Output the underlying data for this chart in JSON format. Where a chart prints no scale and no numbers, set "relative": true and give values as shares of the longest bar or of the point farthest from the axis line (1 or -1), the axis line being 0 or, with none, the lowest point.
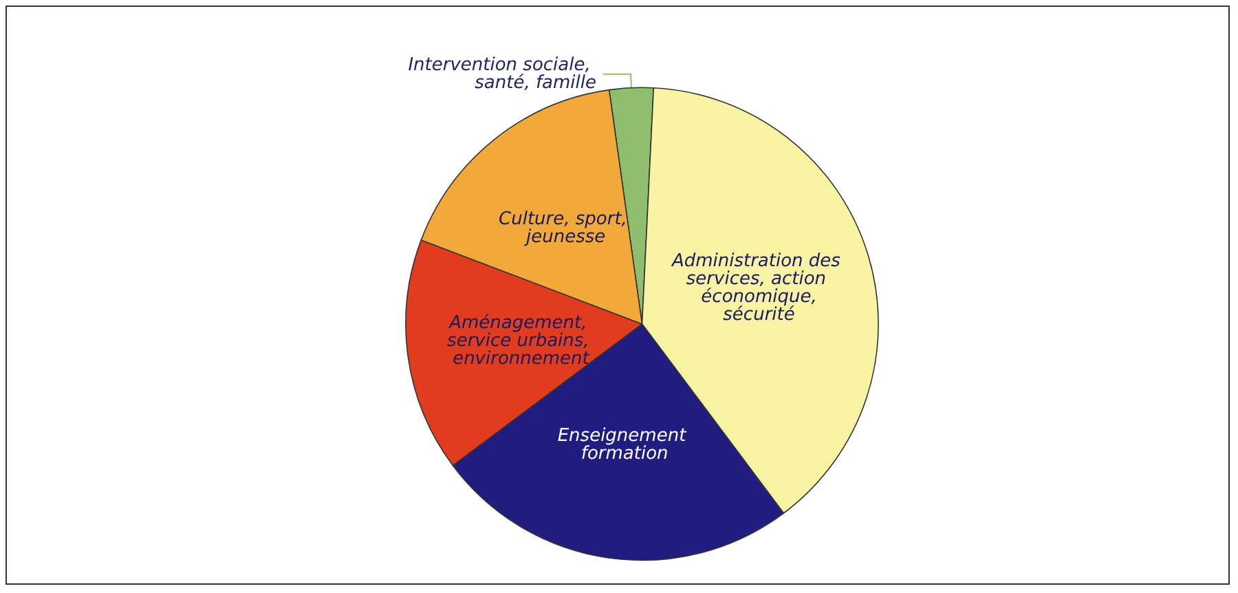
{
  "chart_data": {
    "type": "pie",
    "relative": true,
    "categories": [
      "Intervention sociale, santé, famille",
      "Administration des services, action économique,sécurité",
      "Enseignement formation",
      "Aménagement, service urbains, environnement",
      "Culture, sport, jeunesse"
    ],
    "values": [
      3,
      39,
      25,
      16,
      17
    ],
    "colors": [
      "#8fbf6e",
      "#f8f4a4",
      "#201c80",
      "#e23c1e",
      "#f2a93a"
    ]
  }
}
